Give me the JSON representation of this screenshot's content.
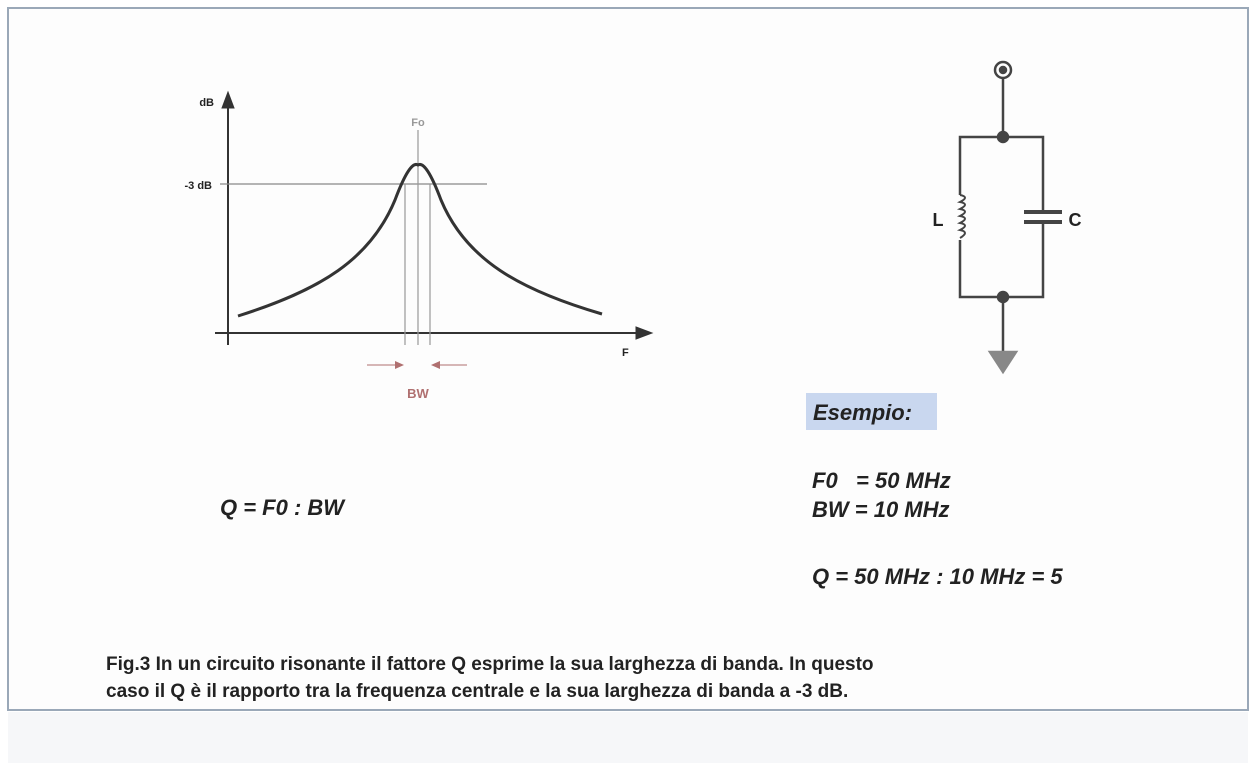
{
  "diagram": {
    "y_axis_label": "dB",
    "x_axis_label": "F",
    "center_label": "Fo",
    "level_label": "-3 dB",
    "bandwidth_label": "BW",
    "formula": "Q = F0 : BW",
    "circuit": {
      "inductor_label": "L",
      "capacitor_label": "C"
    }
  },
  "example": {
    "heading": "Esempio:",
    "lines": [
      "F0   = 50 MHz",
      "BW = 10 MHz",
      "Q = 50 MHz : 10 MHz = 5"
    ]
  },
  "caption": [
    "Fig.3 In un circuito risonante il fattore Q esprime la sua larghezza di banda. In questo",
    "caso il Q è il rapporto tra la frequenza centrale e la sua larghezza di banda a -3 dB."
  ]
}
